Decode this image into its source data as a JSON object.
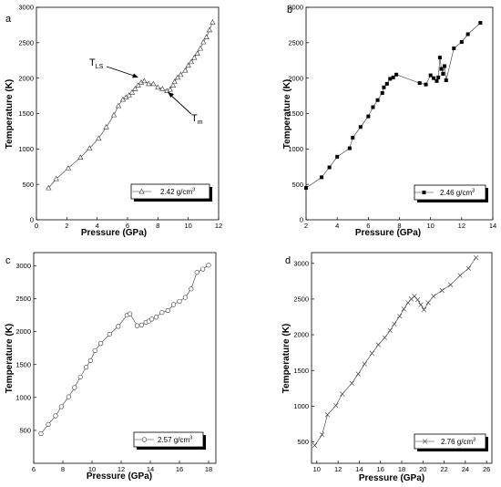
{
  "chart_data": [
    {
      "panel": "a",
      "type": "line",
      "marker": "triangle-open",
      "xlabel": "Pressure (GPa)",
      "ylabel": "Temperature (K)",
      "xlim": [
        0,
        12
      ],
      "ylim": [
        0,
        3000
      ],
      "xticks": [
        0,
        2,
        4,
        6,
        8,
        10,
        12
      ],
      "yticks": [
        0,
        500,
        1000,
        1500,
        2000,
        2500,
        3000
      ],
      "legend": "2.42 g/cm",
      "legend_sup": "3",
      "legend_position": "bottom-right",
      "annotations": [
        {
          "text": "T",
          "sub": "LS",
          "target": [
            6.9,
            1990
          ]
        },
        {
          "text": "T",
          "sub": "m",
          "target": [
            9.0,
            1850
          ]
        }
      ],
      "x": [
        0.8,
        1.3,
        2.1,
        2.9,
        3.5,
        4.1,
        4.6,
        5.1,
        5.4,
        5.7,
        5.9,
        6.1,
        6.3,
        6.5,
        6.7,
        6.9,
        7.1,
        7.4,
        7.7,
        8.0,
        8.3,
        8.6,
        8.8,
        9.0,
        9.1,
        9.3,
        9.5,
        9.8,
        10.0,
        10.2,
        10.4,
        10.6,
        10.8,
        11.0,
        11.2,
        11.4,
        11.6
      ],
      "y": [
        450,
        580,
        730,
        880,
        1010,
        1150,
        1310,
        1480,
        1610,
        1700,
        1730,
        1760,
        1800,
        1850,
        1900,
        1940,
        1960,
        1920,
        1920,
        1870,
        1850,
        1820,
        1840,
        1900,
        1950,
        2010,
        2050,
        2110,
        2180,
        2230,
        2290,
        2350,
        2420,
        2510,
        2580,
        2680,
        2790
      ]
    },
    {
      "panel": "b",
      "type": "line",
      "marker": "square-filled",
      "xlabel": "Pressure (GPa)",
      "ylabel": "Temperature (K)",
      "xlim": [
        2,
        14
      ],
      "ylim": [
        0,
        3000
      ],
      "xticks": [
        2,
        4,
        6,
        8,
        10,
        12,
        14
      ],
      "yticks": [
        0,
        500,
        1000,
        1500,
        2000,
        2500,
        3000
      ],
      "legend": "2.46 g/cm",
      "legend_sup": "3",
      "legend_position": "bottom-right",
      "x": [
        2.0,
        3.0,
        3.5,
        4.0,
        4.8,
        5.0,
        5.5,
        6.0,
        6.3,
        6.6,
        6.9,
        7.0,
        7.2,
        7.4,
        7.6,
        7.8,
        9.3,
        9.7,
        10.0,
        10.2,
        10.4,
        10.5,
        10.6,
        10.7,
        10.8,
        10.9,
        11.0,
        11.5,
        12.0,
        12.4,
        13.2
      ],
      "y": [
        450,
        600,
        740,
        890,
        1010,
        1160,
        1310,
        1460,
        1590,
        1690,
        1790,
        1870,
        1920,
        1990,
        2010,
        2050,
        1930,
        1910,
        2040,
        2000,
        1960,
        2010,
        2290,
        2130,
        2060,
        2170,
        1970,
        2420,
        2510,
        2620,
        2780
      ]
    },
    {
      "panel": "c",
      "type": "line",
      "marker": "circle-open",
      "xlabel": "Pressure (GPa)",
      "ylabel": "Temperature (K)",
      "xlim": [
        6,
        18.5
      ],
      "ylim": [
        0,
        3200
      ],
      "xticks": [
        6,
        8,
        10,
        12,
        14,
        16,
        18
      ],
      "yticks": [
        500,
        1000,
        1500,
        2000,
        2500,
        3000
      ],
      "legend": "2.57 g/cm",
      "legend_sup": "3",
      "legend_position": "bottom-right",
      "x": [
        6.5,
        7.0,
        7.5,
        7.9,
        8.4,
        8.8,
        9.2,
        9.6,
        9.9,
        10.2,
        10.6,
        11.2,
        11.8,
        12.4,
        12.6,
        13.1,
        13.4,
        13.7,
        13.9,
        14.1,
        14.4,
        14.8,
        15.2,
        15.6,
        16.0,
        16.4,
        16.8,
        17.2,
        17.6,
        18.0
      ],
      "y": [
        450,
        590,
        720,
        860,
        1010,
        1150,
        1310,
        1460,
        1560,
        1710,
        1820,
        1960,
        2080,
        2250,
        2270,
        2090,
        2100,
        2140,
        2160,
        2190,
        2220,
        2290,
        2320,
        2410,
        2460,
        2520,
        2650,
        2900,
        2950,
        3010
      ]
    },
    {
      "panel": "d",
      "type": "line",
      "marker": "cross",
      "xlabel": "Pressure (GPa)",
      "ylabel": "Temperature (K)",
      "xlim": [
        9.5,
        26.5
      ],
      "ylim": [
        200,
        3150
      ],
      "xticks": [
        10,
        12,
        14,
        16,
        18,
        20,
        22,
        24,
        26
      ],
      "yticks": [
        500,
        1000,
        1500,
        2000,
        2500,
        3000
      ],
      "legend": "2.76 g/cm",
      "legend_sup": "3",
      "legend_position": "bottom-right",
      "x": [
        9.8,
        10.5,
        11.0,
        11.8,
        12.4,
        13.3,
        13.9,
        14.5,
        15.2,
        15.8,
        16.4,
        16.9,
        17.3,
        17.8,
        18.2,
        18.6,
        18.9,
        19.2,
        19.5,
        19.8,
        20.1,
        20.5,
        21.0,
        21.8,
        22.6,
        23.5,
        24.3,
        25.0
      ],
      "y": [
        450,
        600,
        880,
        1010,
        1170,
        1320,
        1450,
        1590,
        1740,
        1860,
        1960,
        2060,
        2150,
        2260,
        2360,
        2450,
        2500,
        2540,
        2490,
        2420,
        2350,
        2450,
        2540,
        2620,
        2700,
        2830,
        2930,
        3080
      ]
    }
  ]
}
